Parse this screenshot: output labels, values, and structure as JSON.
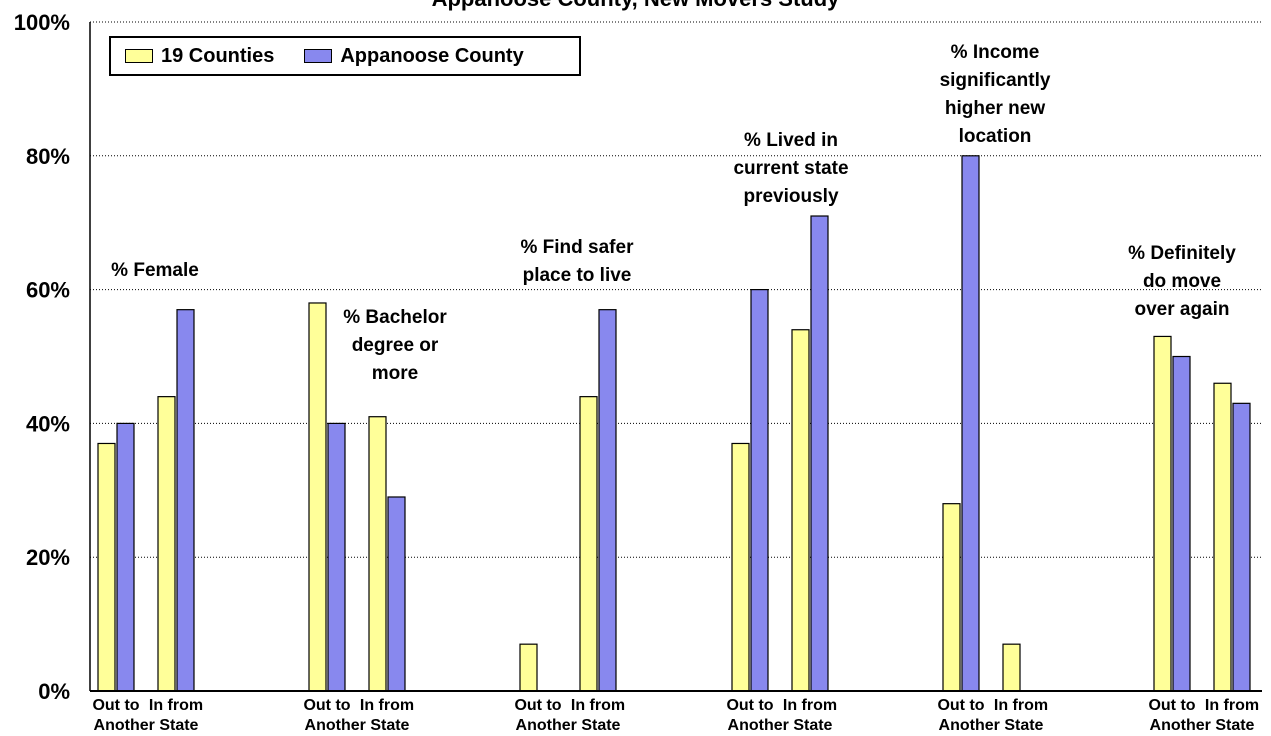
{
  "chart_data": {
    "type": "bar",
    "title": "Appanoose County, New Movers Study",
    "ylim": [
      0,
      100
    ],
    "yticks": [
      "0%",
      "20%",
      "40%",
      "60%",
      "80%",
      "100%"
    ],
    "grid": true,
    "legend_position": "top-left",
    "colors": {
      "19 Counties": "#ffff99",
      "Appanoose County": "#8888ee"
    },
    "series": [
      {
        "name": "19 Counties",
        "color": "#ffff99"
      },
      {
        "name": "Appanoose County",
        "color": "#8888ee"
      }
    ],
    "groups": [
      {
        "annotation": [
          "% Female"
        ],
        "categories": [
          {
            "label": [
              "Out to",
              "Another State"
            ],
            "values": [
              37,
              40
            ]
          },
          {
            "label": [
              "In from",
              ""
            ],
            "values": [
              44,
              57
            ]
          }
        ]
      },
      {
        "annotation": [
          "% Bachelor",
          "degree or",
          "more"
        ],
        "categories": [
          {
            "label": [
              "Out to",
              "Another State"
            ],
            "values": [
              58,
              40
            ]
          },
          {
            "label": [
              "In from",
              ""
            ],
            "values": [
              41,
              29
            ]
          }
        ]
      },
      {
        "annotation": [
          "% Find safer",
          "place to live"
        ],
        "categories": [
          {
            "label": [
              "Out to",
              "Another State"
            ],
            "values": [
              7,
              0
            ]
          },
          {
            "label": [
              "In from",
              ""
            ],
            "values": [
              44,
              57
            ]
          }
        ]
      },
      {
        "annotation": [
          "% Lived in",
          "current state",
          "previously"
        ],
        "categories": [
          {
            "label": [
              "Out to",
              "Another State"
            ],
            "values": [
              37,
              60
            ]
          },
          {
            "label": [
              "In from",
              ""
            ],
            "values": [
              54,
              71
            ]
          }
        ]
      },
      {
        "annotation": [
          "% Income",
          "significantly",
          "higher new",
          "location"
        ],
        "categories": [
          {
            "label": [
              "Out to",
              "Another State"
            ],
            "values": [
              28,
              80
            ]
          },
          {
            "label": [
              "In from",
              ""
            ],
            "values": [
              7,
              0
            ]
          }
        ]
      },
      {
        "annotation": [
          "% Definitely",
          "do move",
          "over again"
        ],
        "categories": [
          {
            "label": [
              "Out to",
              "Another State"
            ],
            "values": [
              53,
              50
            ]
          },
          {
            "label": [
              "In from",
              ""
            ],
            "values": [
              46,
              43
            ]
          }
        ]
      }
    ]
  }
}
